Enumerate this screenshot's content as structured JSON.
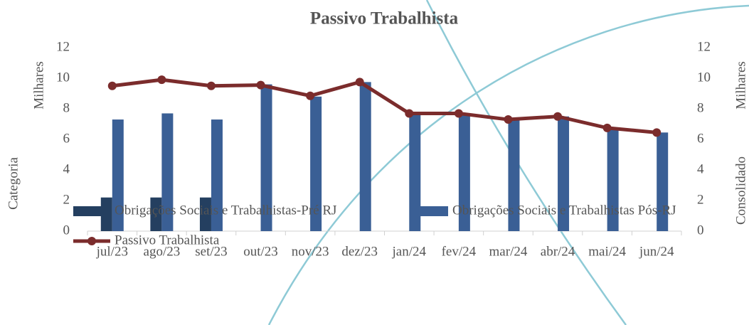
{
  "chart_data": {
    "type": "bar_line",
    "title": "Passivo Trabalhista",
    "y_axis_label": "Milhares",
    "y_axis_title": "Categoria",
    "y2_axis_label": "Milhares",
    "y2_axis_title": "Consolidado",
    "categories": [
      "jul/23",
      "ago/23",
      "set/23",
      "out/23",
      "nov/23",
      "dez/23",
      "jan/24",
      "fev/24",
      "mar/24",
      "abr/24",
      "mai/24",
      "jun/24"
    ],
    "series": [
      {
        "name": "Obrigações Sociais e Trabalhistas-Pré RJ",
        "type": "bar",
        "color": "#243f60",
        "values": [
          2.2,
          2.2,
          2.2,
          null,
          null,
          null,
          null,
          null,
          null,
          null,
          null,
          null
        ]
      },
      {
        "name": "Obrigações Sociais e Trabalhistas Pós-RJ",
        "type": "bar",
        "color": "#3a5f95",
        "values": [
          7.3,
          7.7,
          7.3,
          9.6,
          8.8,
          9.75,
          7.7,
          7.7,
          7.3,
          7.5,
          6.7,
          6.45
        ]
      },
      {
        "name": "Passivo Trabalhista",
        "type": "line",
        "axis": "y2",
        "color": "#7b2c2c",
        "values": [
          9.5,
          9.9,
          9.5,
          9.55,
          8.85,
          9.75,
          7.7,
          7.7,
          7.3,
          7.5,
          6.75,
          6.45
        ]
      }
    ],
    "ylim": [
      0,
      12
    ],
    "yticks": [
      0,
      2,
      4,
      6,
      8,
      10,
      12
    ],
    "y2lim": [
      0,
      12
    ],
    "y2ticks": [
      0,
      2,
      4,
      6,
      8,
      10,
      12
    ],
    "legend": "bottom"
  }
}
